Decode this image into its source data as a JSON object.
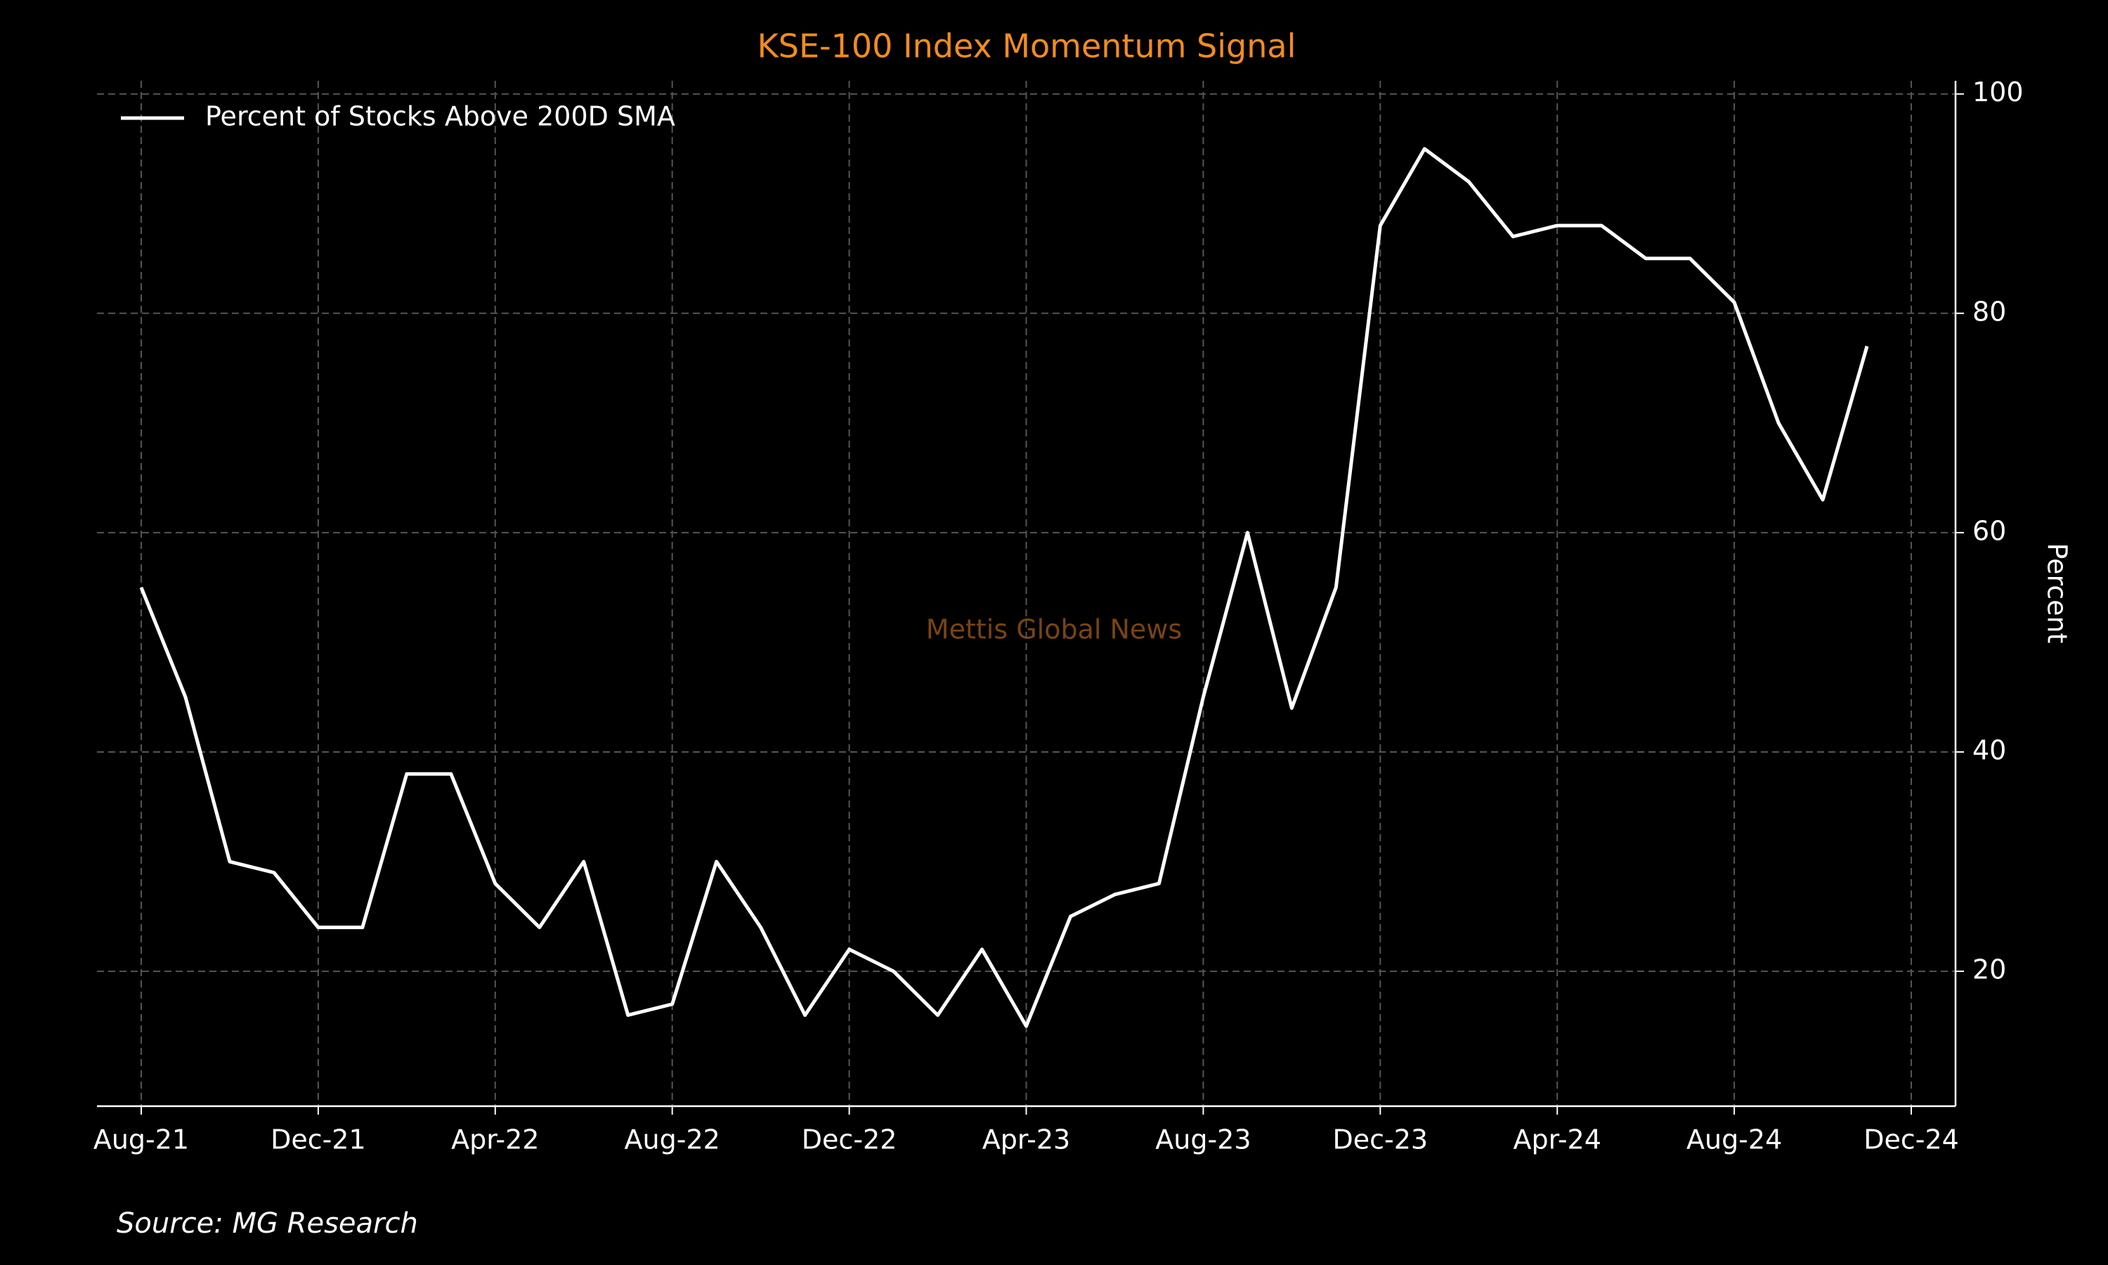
{
  "chart_data": {
    "type": "line",
    "title": "KSE-100 Index Momentum Signal",
    "ylabel": "Percent",
    "watermark": "Mettis Global News",
    "source": "Source: MG Research",
    "legend": "upper left",
    "grid": true,
    "y_axis_side": "right",
    "x": [
      "2021-08",
      "2021-09",
      "2021-10",
      "2021-11",
      "2021-12",
      "2022-01",
      "2022-02",
      "2022-03",
      "2022-04",
      "2022-05",
      "2022-06",
      "2022-07",
      "2022-08",
      "2022-09",
      "2022-10",
      "2022-11",
      "2022-12",
      "2023-01",
      "2023-02",
      "2023-03",
      "2023-04",
      "2023-05",
      "2023-06",
      "2023-07",
      "2023-08",
      "2023-09",
      "2023-10",
      "2023-11",
      "2023-12",
      "2024-01",
      "2024-02",
      "2024-03",
      "2024-04",
      "2024-05",
      "2024-06",
      "2024-07",
      "2024-08",
      "2024-09",
      "2024-10",
      "2024-11"
    ],
    "series": [
      {
        "name": "Percent of Stocks Above 200D SMA",
        "color": "#ffffff",
        "values": [
          55,
          45,
          30,
          29,
          24,
          24,
          38,
          38,
          28,
          24,
          30,
          16,
          17,
          30,
          24,
          16,
          22,
          20,
          16,
          22,
          15,
          25,
          27,
          28,
          45,
          60,
          44,
          55,
          88,
          95,
          92,
          87,
          88,
          88,
          85,
          85,
          81,
          70,
          63,
          77
        ]
      }
    ],
    "xlim": [
      "2021-07",
      "2025-01"
    ],
    "xticks": [
      {
        "value": "2021-08",
        "label": "Aug-21"
      },
      {
        "value": "2021-12",
        "label": "Dec-21"
      },
      {
        "value": "2022-04",
        "label": "Apr-22"
      },
      {
        "value": "2022-08",
        "label": "Aug-22"
      },
      {
        "value": "2022-12",
        "label": "Dec-22"
      },
      {
        "value": "2023-04",
        "label": "Apr-23"
      },
      {
        "value": "2023-08",
        "label": "Aug-23"
      },
      {
        "value": "2023-12",
        "label": "Dec-23"
      },
      {
        "value": "2024-04",
        "label": "Apr-24"
      },
      {
        "value": "2024-08",
        "label": "Aug-24"
      },
      {
        "value": "2024-12",
        "label": "Dec-24"
      }
    ],
    "ylim": [
      7.7,
      101.2
    ],
    "yticks": [
      20,
      40,
      60,
      80,
      100
    ]
  }
}
